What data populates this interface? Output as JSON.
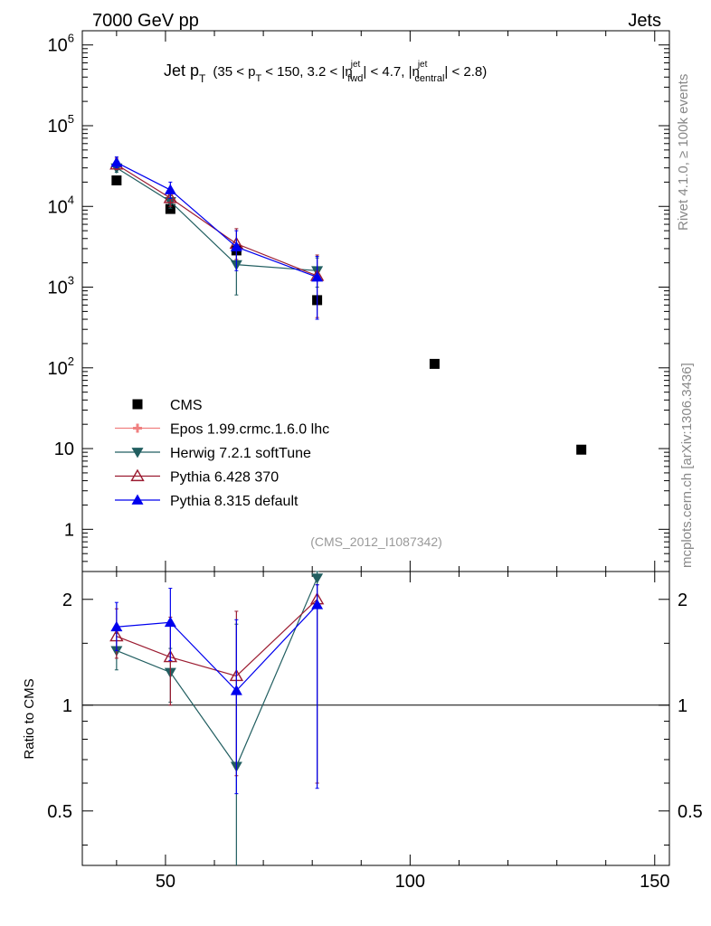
{
  "header": {
    "left": "7000 GeV pp",
    "right": "Jets"
  },
  "side_labels": {
    "rivet": "Rivet 4.1.0, ≥ 100k events",
    "mcplots": "mcplots.cern.ch [arXiv:1306.3436]"
  },
  "title": {
    "main": "Jet p",
    "main_sub": "T",
    "paren_open": "(35 < p",
    "paren_sub1": "T",
    "mid": "< 150, 3.2 < |η",
    "sup_jet1": "jet",
    "sub_fwd": "fwd",
    "mid2": "| < 4.7, |η",
    "sup_jet2": "jet",
    "sub_central": "central",
    "end": "| < 2.8)"
  },
  "analysis_label": "(CMS_2012_I1087342)",
  "colors": {
    "cms": "#000000",
    "epos": "#f08080",
    "herwig": "#215e60",
    "pythia6": "#9b1b30",
    "pythia8": "#0000ee"
  },
  "chart_data": [
    {
      "type": "scatter",
      "panel": "main",
      "yscale": "log",
      "xlim": [
        33,
        153
      ],
      "ylim": [
        0.3,
        1500000
      ],
      "y_ticks": [
        {
          "v": 1,
          "base": "1",
          "exp": ""
        },
        {
          "v": 10,
          "base": "10",
          "exp": ""
        },
        {
          "v": 100,
          "base": "10",
          "exp": "2"
        },
        {
          "v": 1000,
          "base": "10",
          "exp": "3"
        },
        {
          "v": 10000,
          "base": "10",
          "exp": "4"
        },
        {
          "v": 100000,
          "base": "10",
          "exp": "5"
        },
        {
          "v": 1000000,
          "base": "10",
          "exp": "6"
        }
      ],
      "legend": [
        "CMS",
        "Epos 1.99.crmc.1.6.0 lhc",
        "Herwig 7.2.1 softTune",
        "Pythia 6.428 370",
        "Pythia 8.315 default"
      ],
      "series": [
        {
          "name": "CMS",
          "key": "cms",
          "marker": "square",
          "line": false,
          "x": [
            40,
            51,
            64.5,
            81,
            105,
            135
          ],
          "y": [
            21000,
            9300,
            2850,
            690,
            112,
            9.7
          ],
          "err_lo": [
            0,
            0,
            0,
            0,
            0,
            0
          ],
          "err_hi": [
            0,
            0,
            0,
            0,
            0,
            0
          ]
        },
        {
          "name": "Epos 1.99.crmc.1.6.0 lhc",
          "key": "epos",
          "marker": "none",
          "line": false,
          "x": [],
          "y": [],
          "err_lo": [],
          "err_hi": []
        },
        {
          "name": "Herwig 7.2.1 softTune",
          "key": "herwig",
          "marker": "triangle-down",
          "line": true,
          "x": [
            40,
            51,
            64.5,
            81
          ],
          "y": [
            30000,
            11500,
            1900,
            1600
          ],
          "err_lo": [
            26500,
            9500,
            800,
            1000
          ],
          "err_hi": [
            33500,
            13500,
            3200,
            2300
          ]
        },
        {
          "name": "Pythia 6.428 370",
          "key": "pythia6",
          "marker": "triangle-up-open",
          "line": true,
          "x": [
            40,
            51,
            64.5,
            81
          ],
          "y": [
            33000,
            12700,
            3450,
            1380
          ],
          "err_lo": [
            28500,
            10000,
            2200,
            420
          ],
          "err_hi": [
            39500,
            16500,
            5300,
            2500
          ]
        },
        {
          "name": "Pythia 8.315 default",
          "key": "pythia8",
          "marker": "triangle-up",
          "line": true,
          "x": [
            40,
            51,
            64.5,
            81
          ],
          "y": [
            35000,
            16000,
            3150,
            1330
          ],
          "err_lo": [
            30000,
            12500,
            1600,
            400
          ],
          "err_hi": [
            41000,
            20000,
            5000,
            2400
          ]
        }
      ]
    },
    {
      "type": "scatter",
      "panel": "ratio",
      "yscale": "log",
      "ylabel": "Ratio to CMS",
      "xlim": [
        33,
        153
      ],
      "ylim": [
        0.35,
        2.4
      ],
      "x_ticks": [
        50,
        100,
        150
      ],
      "y_ticks": [
        0.5,
        1,
        2
      ],
      "reference_line": 1,
      "series": [
        {
          "name": "Herwig 7.2.1 softTune",
          "key": "herwig",
          "marker": "triangle-down",
          "x": [
            40,
            51,
            64.5,
            81
          ],
          "y": [
            1.43,
            1.24,
            0.67,
            2.3
          ],
          "err_lo": [
            1.26,
            1.02,
            0.3,
            0.6
          ],
          "err_hi": [
            1.6,
            1.45,
            1.7,
            2.4
          ]
        },
        {
          "name": "Pythia 6.428 370",
          "key": "pythia6",
          "marker": "triangle-up-open",
          "x": [
            40,
            51,
            64.5,
            81
          ],
          "y": [
            1.57,
            1.37,
            1.21,
            2.0
          ],
          "err_lo": [
            1.36,
            1.0,
            0.63,
            0.6
          ],
          "err_hi": [
            1.88,
            1.78,
            1.85,
            2.2
          ]
        },
        {
          "name": "Pythia 8.315 default",
          "key": "pythia8",
          "marker": "triangle-up",
          "x": [
            40,
            51,
            64.5,
            81
          ],
          "y": [
            1.67,
            1.72,
            1.1,
            1.93
          ],
          "err_lo": [
            1.43,
            1.34,
            0.56,
            0.58
          ],
          "err_hi": [
            1.96,
            2.15,
            1.75,
            2.2
          ]
        }
      ]
    }
  ]
}
